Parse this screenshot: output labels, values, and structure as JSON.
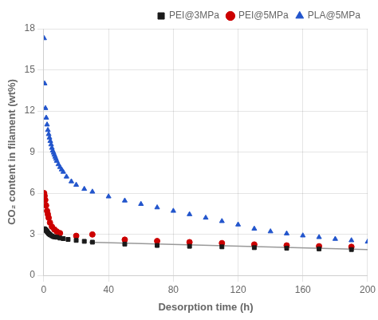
{
  "chart_data": {
    "type": "scatter",
    "xlabel": "Desorption time (h)",
    "ylabel": "CO₂ content in filament (wt%)",
    "xlim": [
      0,
      200
    ],
    "ylim": [
      0,
      18
    ],
    "xticks": [
      0,
      40,
      80,
      120,
      160,
      200
    ],
    "yticks": [
      0,
      3,
      6,
      9,
      12,
      15,
      18
    ],
    "grid": true,
    "legend": "upper right",
    "series": [
      {
        "name": "PEI@3MPa",
        "color": "#1a1a1a",
        "marker": "square",
        "x": [
          0.2,
          0.4,
          0.6,
          0.8,
          1.0,
          1.3,
          1.6,
          2.0,
          2.5,
          3.0,
          3.5,
          4.0,
          5.0,
          6.0,
          7.0,
          8.0,
          10.0,
          12.0,
          15.0,
          20.0,
          25.0,
          30.0,
          50.0,
          70.0,
          90.0,
          110.0,
          130.0,
          150.0,
          170.0,
          190.0
        ],
        "values": [
          3.4,
          3.38,
          3.35,
          3.35,
          3.33,
          3.3,
          3.25,
          3.2,
          3.12,
          3.05,
          3.0,
          2.95,
          2.88,
          2.82,
          2.8,
          2.78,
          2.72,
          2.68,
          2.62,
          2.55,
          2.48,
          2.42,
          2.28,
          2.18,
          2.12,
          2.08,
          2.02,
          1.98,
          1.93,
          1.88
        ]
      },
      {
        "name": "PEI@5MPa",
        "color": "#cc0000",
        "marker": "circle",
        "x": [
          0.2,
          0.5,
          0.9,
          1.4,
          2.0,
          2.5,
          3.0,
          3.8,
          5.0,
          6.5,
          8.0,
          10.0,
          20.0,
          30.0,
          50.0,
          70.0,
          90.0,
          110.0,
          130.0,
          150.0,
          170.0,
          190.0
        ],
        "values": [
          6.0,
          5.8,
          5.5,
          5.1,
          4.7,
          4.45,
          4.2,
          3.85,
          3.55,
          3.35,
          3.2,
          3.08,
          2.88,
          2.98,
          2.6,
          2.5,
          2.42,
          2.35,
          2.25,
          2.18,
          2.12,
          2.08
        ]
      },
      {
        "name": "PLA@5MPa",
        "color": "#2255cc",
        "marker": "triangle",
        "x": [
          0.2,
          0.5,
          1.0,
          1.5,
          2.0,
          2.5,
          3.0,
          3.5,
          4.0,
          4.5,
          5.0,
          5.5,
          6.0,
          6.5,
          7.0,
          7.5,
          8.0,
          9.0,
          10.0,
          11.0,
          12.0,
          14.0,
          17.0,
          20.0,
          25.0,
          30.0,
          40.0,
          50.0,
          60.0,
          70.0,
          80.0,
          90.0,
          100.0,
          110.0,
          120.0,
          130.0,
          140.0,
          150.0,
          160.0,
          170.0,
          180.0,
          190.0,
          200.0
        ],
        "values": [
          17.3,
          14.0,
          12.2,
          11.5,
          11.0,
          10.6,
          10.3,
          10.05,
          9.8,
          9.55,
          9.3,
          9.1,
          8.95,
          8.8,
          8.65,
          8.5,
          8.35,
          8.1,
          7.9,
          7.72,
          7.55,
          7.2,
          6.85,
          6.6,
          6.3,
          6.1,
          5.75,
          5.45,
          5.2,
          4.95,
          4.7,
          4.45,
          4.2,
          3.95,
          3.7,
          3.4,
          3.2,
          3.05,
          2.9,
          2.78,
          2.65,
          2.55,
          2.45
        ]
      },
      {
        "type": "line",
        "color": "#999999",
        "line_style": "solid",
        "x": [
          28,
          200
        ],
        "values": [
          2.42,
          1.88
        ]
      }
    ]
  }
}
